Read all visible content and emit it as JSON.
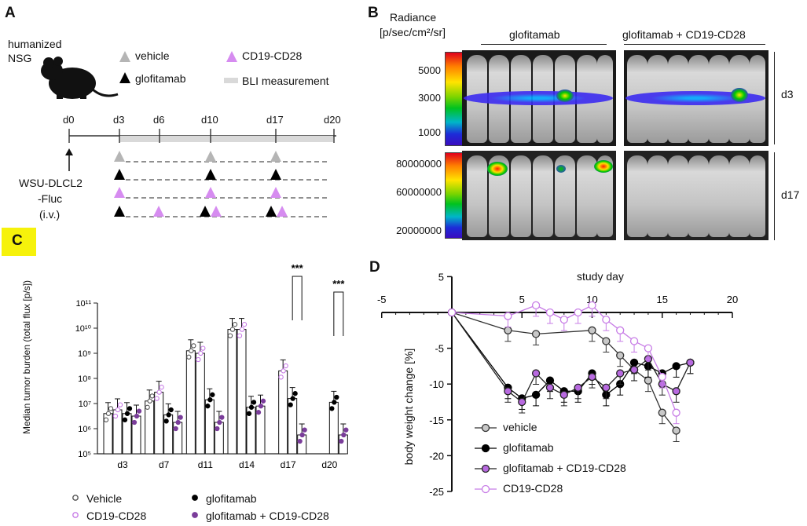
{
  "panels": {
    "A": "A",
    "B": "B",
    "C": "C",
    "D": "D"
  },
  "panelA": {
    "model_line1": "humanized",
    "model_line2": "NSG",
    "legend": {
      "vehicle": "vehicle",
      "glofitamab": "glofitamab",
      "cd19": "CD19-CD28",
      "bli": "BLI measurement"
    },
    "days": [
      "d0",
      "d3",
      "d6",
      "d10",
      "d17",
      "d20"
    ],
    "cells_line1": "WSU-DLCL2",
    "cells_line2": "-Fluc",
    "cells_line3": "(i.v.)",
    "colors": {
      "vehicle": "#b5b5b5",
      "glofitamab": "#000000",
      "cd19": "#d68cf0"
    }
  },
  "panelB": {
    "radiance_line1": "Radiance",
    "radiance_line2": "[p/sec/cm²/sr]",
    "group1": "glofitamab",
    "group2": "glofitamab + CD19-CD28",
    "row1": "d3",
    "row2": "d17",
    "scale1": [
      "5000",
      "3000",
      "1000"
    ],
    "scale2": [
      "80000000",
      "60000000",
      "20000000"
    ]
  },
  "panelC": {
    "ylabel": "Median tumor burden (total flux [p/s])",
    "yticks": [
      "10⁵",
      "10⁶",
      "10⁷",
      "10⁸",
      "10⁹",
      "10¹⁰",
      "10¹¹"
    ],
    "sig": "***",
    "legend": [
      "Vehicle",
      "CD19-CD28",
      "glofitamab",
      "glofitamab + CD19-CD28"
    ]
  },
  "panelD": {
    "xlabel": "study day",
    "ylabel": "body weight change [%]",
    "xticks": [
      "-5",
      "5",
      "10",
      "15",
      "20"
    ],
    "yticks": [
      "5",
      "-5",
      "-10",
      "-15",
      "-20",
      "-25"
    ],
    "legend": [
      "vehicle",
      "glofitamab",
      "glofitamab + CD19-CD28",
      "CD19-CD28"
    ]
  },
  "chart_data": [
    {
      "type": "bar",
      "title": "",
      "xlabel": "",
      "ylabel": "Median tumor burden (total flux [p/s])",
      "yscale": "log10",
      "ylim": [
        100000,
        100000000000
      ],
      "categories": [
        "d3",
        "d7",
        "d11",
        "d14",
        "d17",
        "d20"
      ],
      "series": [
        {
          "name": "Vehicle",
          "color": "#555555",
          "log10_values": [
            6.6,
            7.1,
            9.1,
            9.95,
            null,
            null
          ]
        },
        {
          "name": "CD19-CD28",
          "color": "#c77ce6",
          "log10_values": [
            6.75,
            7.45,
            9.0,
            9.95,
            8.3,
            null
          ]
        },
        {
          "name": "glofitamab",
          "color": "#000000",
          "log10_values": [
            6.6,
            6.55,
            7.15,
            6.85,
            7.2,
            7.05
          ]
        },
        {
          "name": "glofitamab + CD19-CD28",
          "color": "#7a3d9a",
          "log10_values": [
            6.5,
            6.25,
            6.25,
            6.9,
            5.75,
            5.75
          ]
        }
      ],
      "annotations": [
        {
          "text": "***",
          "between": [
            "d17",
            "glofitamab",
            "glofitamab + CD19-CD28"
          ]
        },
        {
          "text": "***",
          "between": [
            "d20",
            "glofitamab",
            "glofitamab + CD19-CD28"
          ]
        }
      ]
    },
    {
      "type": "line",
      "title": "",
      "xlabel": "study day",
      "ylabel": "body weight change [%]",
      "xlim": [
        -5,
        20
      ],
      "ylim": [
        -25,
        5
      ],
      "series": [
        {
          "name": "vehicle",
          "color": "#999999",
          "marker": "filled-grey",
          "x": [
            0,
            4,
            6,
            10,
            11,
            12,
            13,
            14,
            15,
            16
          ],
          "y": [
            0,
            -2.5,
            -3,
            -2.5,
            -4,
            -6,
            -8,
            -9.5,
            -14,
            -16.5
          ]
        },
        {
          "name": "glofitamab",
          "color": "#000000",
          "marker": "filled-black",
          "x": [
            0,
            4,
            5,
            6,
            7,
            8,
            9,
            10,
            11,
            12,
            13,
            14,
            15,
            16,
            17
          ],
          "y": [
            0,
            -10.5,
            -12,
            -11.5,
            -9.5,
            -11,
            -11,
            -8.5,
            -11.5,
            -10,
            -7,
            -7.5,
            -8.5,
            -7.5,
            -7
          ]
        },
        {
          "name": "glofitamab + CD19-CD28",
          "color": "#555555",
          "marker": "filled-purple",
          "x": [
            0,
            4,
            5,
            6,
            7,
            8,
            9,
            10,
            11,
            12,
            13,
            14,
            15,
            16,
            17
          ],
          "y": [
            0,
            -11,
            -12.5,
            -8.5,
            -10.5,
            -11.5,
            -10.5,
            -9,
            -10.5,
            -8.5,
            -8,
            -6.5,
            -10,
            -11,
            -7
          ]
        },
        {
          "name": "CD19-CD28",
          "color": "#c77ce6",
          "marker": "open-purple",
          "x": [
            0,
            4,
            6,
            7,
            8,
            9,
            10,
            11,
            12,
            13,
            14,
            15,
            16
          ],
          "y": [
            0,
            -0.5,
            1,
            0,
            -1,
            0,
            1,
            -1,
            -2.5,
            -4,
            -5,
            -9,
            -14
          ]
        }
      ]
    }
  ]
}
